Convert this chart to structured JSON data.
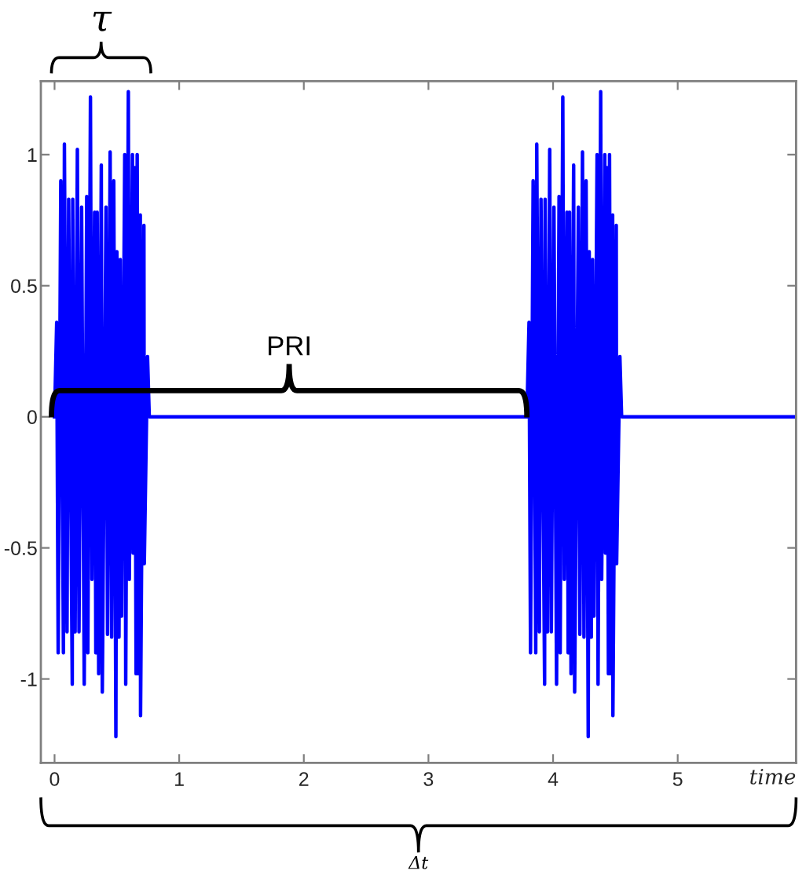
{
  "chart_data": {
    "type": "line",
    "xlabel": "time",
    "annotations": [
      "τ",
      "PRI",
      "Δt"
    ],
    "x": [
      0,
      0.017,
      0.029,
      0.05,
      0.071,
      0.079,
      0.1,
      0.113,
      0.142,
      0.146,
      0.165,
      0.183,
      0.196,
      0.217,
      0.238,
      0.258,
      0.267,
      0.288,
      0.3,
      0.321,
      0.331,
      0.342,
      0.354,
      0.375,
      0.383,
      0.413,
      0.425,
      0.446,
      0.458,
      0.475,
      0.492,
      0.5,
      0.517,
      0.527,
      0.538,
      0.563,
      0.571,
      0.592,
      0.6,
      0.625,
      0.63,
      0.642,
      0.654,
      0.663,
      0.675,
      0.688,
      0.69,
      0.717,
      0.72,
      0.746,
      0.76,
      3.79,
      3.807,
      3.819,
      3.84,
      3.861,
      3.869,
      3.89,
      3.903,
      3.932,
      3.936,
      3.955,
      3.973,
      3.986,
      4.007,
      4.028,
      4.048,
      4.057,
      4.078,
      4.09,
      4.111,
      4.121,
      4.132,
      4.144,
      4.165,
      4.173,
      4.203,
      4.215,
      4.236,
      4.248,
      4.265,
      4.282,
      4.29,
      4.307,
      4.317,
      4.328,
      4.353,
      4.361,
      4.382,
      4.39,
      4.415,
      4.42,
      4.432,
      4.444,
      4.453,
      4.465,
      4.478,
      4.48,
      4.507,
      4.51,
      4.536,
      4.55,
      5.95
    ],
    "series": [
      {
        "color": "#0000ff",
        "values": [
          0,
          0.36,
          -0.9,
          0.9,
          -0.9,
          1.04,
          -0.82,
          0.83,
          -1.02,
          0.83,
          -0.82,
          1.02,
          -0.82,
          0.8,
          -1.02,
          0.84,
          -0.9,
          1.22,
          -0.62,
          0.78,
          -0.9,
          0.78,
          -0.98,
          0.96,
          -1.05,
          0.8,
          -0.83,
          1.01,
          -0.84,
          0.9,
          -1.22,
          0.63,
          -0.84,
          0.6,
          -0.76,
          1.0,
          -1.02,
          1.24,
          -0.62,
          1.0,
          -0.52,
          0.95,
          -0.98,
          1.0,
          -0.98,
          0.77,
          -1.14,
          0.73,
          -0.56,
          0.23,
          0,
          0,
          0.36,
          -0.9,
          0.9,
          -0.9,
          1.04,
          -0.82,
          0.83,
          -1.02,
          0.83,
          -0.82,
          1.02,
          -0.82,
          0.8,
          -1.02,
          0.84,
          -0.9,
          1.22,
          -0.62,
          0.78,
          -0.9,
          0.78,
          -0.98,
          0.96,
          -1.05,
          0.8,
          -0.83,
          1.01,
          -0.84,
          0.9,
          -1.22,
          0.63,
          -0.84,
          0.6,
          -0.76,
          1.0,
          -1.02,
          1.24,
          -0.62,
          1.0,
          -0.52,
          0.95,
          -0.98,
          1.0,
          -0.98,
          0.77,
          -1.14,
          0.73,
          -0.56,
          0.23,
          0,
          0
        ]
      }
    ],
    "xlim": [
      -0.11,
      5.95
    ],
    "ylim": [
      -1.32,
      1.28
    ],
    "xticks": [
      0,
      1,
      2,
      3,
      4,
      5
    ],
    "yticks": [
      {
        "value": -1,
        "label": "-1"
      },
      {
        "value": -0.5,
        "label": "-0.5"
      },
      0,
      0.5,
      1
    ]
  }
}
